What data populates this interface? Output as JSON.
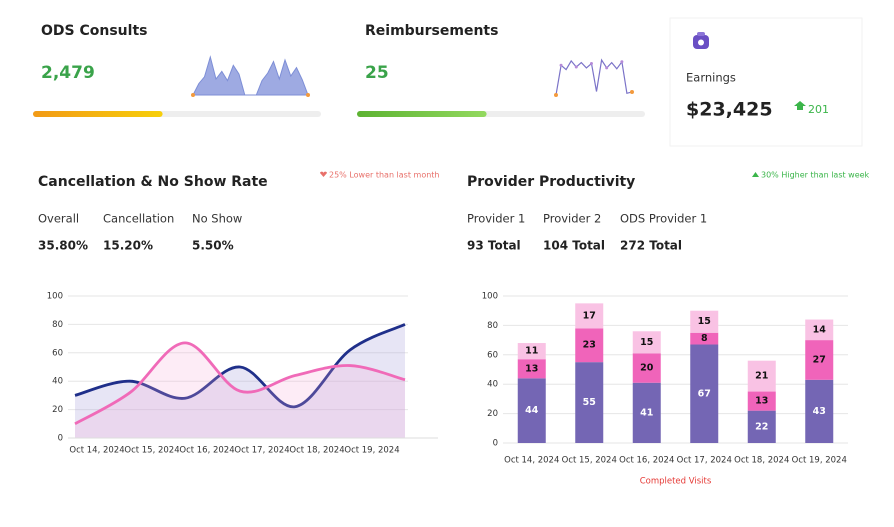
{
  "kpis": [
    {
      "title": "ODS Consults",
      "value": "2,479",
      "progress": 45,
      "colors": [
        "#f29a16",
        "#f7cf0a"
      ],
      "spark_type": "area",
      "sparkline": [
        0,
        30,
        48,
        100,
        42,
        62,
        38,
        78,
        55,
        0,
        0,
        0,
        38,
        58,
        88,
        42,
        92,
        50,
        72,
        40,
        0
      ]
    },
    {
      "title": "Reimbursements",
      "value": "25",
      "progress": 45,
      "colors": [
        "#5db332",
        "#93d95f"
      ],
      "spark_type": "line",
      "sparkline": [
        10,
        78,
        68,
        88,
        74,
        84,
        72,
        82,
        18,
        90,
        72,
        84,
        70,
        86,
        14,
        17
      ]
    }
  ],
  "earnings": {
    "label": "Earnings",
    "value": "$23,425",
    "change": "201"
  },
  "panels": [
    {
      "title": "Cancellation & No Show Rate",
      "note": "25% Lower than last month",
      "trend": "down",
      "stats": [
        {
          "label": "Overall",
          "value": "35.80%"
        },
        {
          "label": "Cancellation",
          "value": "15.20%"
        },
        {
          "label": "No Show",
          "value": "5.50%"
        }
      ],
      "chart_data": {
        "type": "line",
        "categories": [
          "Oct 14, 2024",
          "Oct 15, 2024",
          "Oct 16, 2024",
          "Oct 17, 2024",
          "Oct 18, 2024",
          "Oct 19, 2024",
          null
        ],
        "series": [
          {
            "color": "#1f2f8a",
            "fill": "rgba(170,160,220,0.28)",
            "values": [
              30,
              40,
              28,
              50,
              22,
              62,
              80
            ]
          },
          {
            "color": "#f06ab8",
            "fill": "rgba(245,170,215,0.22)",
            "values": [
              10,
              32,
              67,
              33,
              44,
              51,
              41
            ]
          }
        ],
        "ylim": [
          0,
          100
        ],
        "yticks": [
          0,
          20,
          40,
          60,
          80,
          100
        ],
        "grid": true
      }
    },
    {
      "title": "Provider Productivity",
      "note": "30% Higher than last week",
      "trend": "up",
      "stats": [
        {
          "label": "Provider 1",
          "value": "93 Total"
        },
        {
          "label": "Provider 2",
          "value": "104 Total"
        },
        {
          "label": "ODS Provider 1",
          "value": "272 Total"
        }
      ],
      "chart_data": {
        "type": "stacked_bar",
        "x_label": "Completed Visits",
        "categories": [
          "Oct 14, 2024",
          "Oct 15, 2024",
          "Oct 16, 2024",
          "Oct 17, 2024",
          "Oct 18, 2024",
          "Oct 19, 2024"
        ],
        "series": [
          {
            "color": "#7466b4",
            "values": [
              44,
              55,
              41,
              67,
              22,
              43
            ]
          },
          {
            "color": "#f064ba",
            "values": [
              13,
              23,
              20,
              8,
              13,
              27
            ]
          },
          {
            "color": "#f9c2e4",
            "values": [
              11,
              17,
              15,
              15,
              21,
              14
            ]
          }
        ],
        "ylim": [
          0,
          100
        ],
        "yticks": [
          0,
          20,
          40,
          60,
          80,
          100
        ],
        "grid": true
      }
    }
  ]
}
